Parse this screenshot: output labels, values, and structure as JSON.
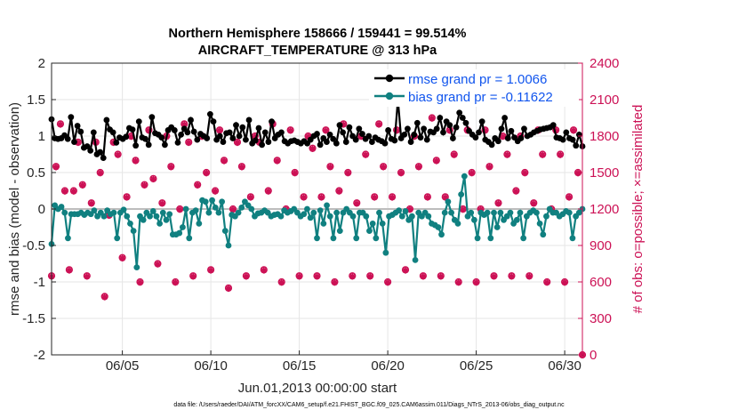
{
  "chart_data": {
    "type": "line",
    "title": [
      "Northern Hemisphere 158666 / 159441 = 99.514%",
      "AIRCRAFT_TEMPERATURE @ 313 hPa"
    ],
    "xlabel": "Jun.01,2013 00:00:00 start",
    "ylabel_left": "rmse and bias (model - observation)",
    "ylabel_right": "# of obs: o=possible; ×=assimilated",
    "footer": "data file: /Users/raeder/DAI/ATM_forcXX/CAM6_setup/f.e21.FHIST_BGC.f09_025.CAM6assim.011/Diags_NTrS_2013-06/obs_diag_output.nc",
    "x_tick_labels": [
      "06/05",
      "06/10",
      "06/15",
      "06/20",
      "06/25",
      "06/30"
    ],
    "x_tick_days": [
      5,
      10,
      15,
      20,
      25,
      30
    ],
    "xlim_days": [
      1,
      31
    ],
    "ylim_left": [
      -2,
      2
    ],
    "y_ticks_left": [
      "-2",
      "-1.5",
      "-1",
      "-0.5",
      "0",
      "0.5",
      "1",
      "1.5",
      "2"
    ],
    "ylim_right": [
      0,
      2400
    ],
    "y_ticks_right": [
      "0",
      "300",
      "600",
      "900",
      "1200",
      "1500",
      "1800",
      "2100",
      "2400"
    ],
    "grid": true,
    "legend": {
      "location": "top-right",
      "entries": [
        "rmse grand pr = 1.0066",
        "bias grand pr = -0.11622"
      ]
    },
    "series": [
      {
        "name": "rmse",
        "axis": "left",
        "color": "#000000",
        "marker": "filled-circle",
        "values": [
          1.23,
          0.97,
          0.96,
          0.97,
          1.01,
          0.96,
          1.26,
          0.92,
          1.14,
          1.06,
          0.84,
          0.86,
          0.8,
          1.05,
          0.75,
          0.78,
          0.7,
          1.22,
          1.09,
          1.05,
          0.91,
          0.98,
          0.96,
          0.99,
          1.11,
          1.09,
          0.87,
          1.2,
          0.98,
          0.96,
          0.88,
          1.26,
          1.04,
          1.02,
          0.98,
          0.88,
          1.08,
          1.12,
          1.08,
          0.91,
          1.02,
          1.1,
          1.05,
          1.22,
          1.06,
          0.95,
          1.03,
          1.0,
          0.97,
          1.3,
          1.2,
          0.95,
          1.0,
          0.92,
          1.04,
          1.05,
          0.97,
          1.15,
          1.0,
          1.12,
          0.95,
          1.22,
          0.9,
          0.94,
          1.11,
          0.88,
          1.05,
          0.92,
          1.2,
          0.97,
          1.02,
          1.05,
          0.93,
          0.9,
          0.93,
          0.94,
          0.92,
          0.9,
          0.93,
          0.9,
          0.95,
          1.0,
          1.03,
          0.88,
          0.97,
          0.92,
          1.02,
          0.96,
          0.9,
          1.15,
          1.05,
          0.92,
          1.12,
          1.0,
          0.95,
          1.1,
          1.03,
          0.96,
          1.0,
          0.92,
          0.98,
          0.95,
          0.93,
          0.9,
          1.08,
          0.96,
          0.94,
          1.5,
          0.97,
          1.02,
          1.1,
          0.92,
          1.02,
          1.18,
          0.98,
          1.1,
          0.95,
          1.06,
          1.05,
          1.1,
          1.25,
          1.05,
          1.2,
          1.15,
          0.97,
          1.12,
          1.32,
          1.25,
          1.18,
          1.07,
          1.02,
          0.98,
          1.05,
          1.2,
          0.95,
          0.92,
          0.88,
          0.97,
          0.93,
          1.1,
          1.25,
          0.97,
          1.07,
          0.98,
          0.93,
          0.97,
          1.1,
          1.0,
          1.02,
          1.05,
          1.07,
          1.09,
          1.1,
          1.11,
          1.12,
          1.15,
          0.98,
          0.97,
          0.95,
          1.05,
          0.97,
          0.95,
          0.87,
          1.02,
          0.86
        ]
      },
      {
        "name": "bias",
        "axis": "left",
        "color": "#108080",
        "marker": "filled-circle",
        "values": [
          -0.48,
          0.05,
          0.0,
          0.03,
          -0.05,
          -0.4,
          -0.07,
          -0.07,
          -0.07,
          -0.05,
          -0.08,
          -0.05,
          -0.07,
          -0.02,
          -0.1,
          -0.05,
          -0.1,
          -0.02,
          -0.07,
          -0.05,
          -0.4,
          -0.05,
          -0.01,
          -0.1,
          -0.2,
          -0.3,
          -0.8,
          -0.1,
          -0.15,
          -0.05,
          -0.1,
          -0.03,
          -0.1,
          -0.2,
          -0.05,
          -0.15,
          -0.07,
          -0.35,
          -0.35,
          -0.33,
          -0.25,
          0.0,
          -0.4,
          -0.05,
          -0.02,
          -0.2,
          0.12,
          0.1,
          -0.05,
          0.12,
          0.02,
          -0.05,
          0.1,
          -0.3,
          -0.5,
          -0.08,
          -0.1,
          -0.05,
          0.02,
          0.1,
          0.05,
          0.0,
          -0.1,
          -0.06,
          -0.05,
          -0.02,
          -0.05,
          -0.1,
          -0.08,
          -0.07,
          -0.1,
          -0.02,
          -0.05,
          -0.03,
          0.0,
          -0.05,
          -0.1,
          -0.07,
          0.0,
          -0.12,
          -0.05,
          -0.4,
          -0.02,
          -0.2,
          0.05,
          -0.1,
          -0.4,
          -0.05,
          -0.3,
          -0.05,
          0.0,
          -0.05,
          -0.1,
          -0.4,
          -0.05,
          -0.05,
          -0.1,
          -0.3,
          -0.2,
          -0.4,
          -0.05,
          -0.2,
          -0.6,
          -0.1,
          -0.08,
          -0.05,
          -0.02,
          -0.1,
          -0.03,
          -0.15,
          -0.1,
          -0.7,
          -0.05,
          -0.1,
          -0.05,
          -0.1,
          -0.2,
          -0.22,
          -0.25,
          -0.35,
          -0.05,
          0.1,
          -0.05,
          -0.15,
          -0.2,
          0.2,
          0.45,
          -0.1,
          -0.05,
          -0.15,
          -0.4,
          -0.05,
          -0.08,
          -0.05,
          -0.4,
          -0.05,
          -0.25,
          -0.05,
          -0.15,
          -0.1,
          -0.05,
          -0.2,
          -0.15,
          -0.05,
          -0.4,
          -0.1,
          -0.05,
          -0.02,
          -0.05,
          -0.2,
          -0.35,
          -0.1,
          0.0,
          -0.05,
          -0.05,
          -0.1,
          -0.07,
          -0.03,
          -0.05,
          -0.4,
          -0.1,
          -0.05,
          0.0
        ]
      },
      {
        "name": "obs possible",
        "axis": "right",
        "color": "#cc1155",
        "marker": "circle",
        "x_days": [
          1.0,
          1.25,
          1.5,
          1.75,
          2.0,
          2.25,
          2.5,
          2.75,
          3.0,
          3.25,
          3.5,
          3.75,
          4.0,
          4.25,
          4.5,
          4.75,
          5.0,
          5.25,
          5.5,
          5.75,
          6.0,
          6.25,
          6.5,
          6.75,
          7.0,
          7.25,
          7.5,
          7.75,
          8.0,
          8.25,
          8.5,
          8.75,
          9.0,
          9.25,
          9.5,
          9.75,
          10.0,
          10.25,
          10.5,
          10.75,
          11.0,
          11.25,
          11.5,
          11.75,
          12.0,
          12.25,
          12.5,
          12.75,
          13.0,
          13.25,
          13.5,
          13.75,
          14.0,
          14.25,
          14.5,
          14.75,
          15.0,
          15.25,
          15.5,
          15.75,
          16.0,
          16.25,
          16.5,
          16.75,
          17.0,
          17.25,
          17.5,
          17.75,
          18.0,
          18.25,
          18.5,
          18.75,
          19.0,
          19.25,
          19.5,
          19.75,
          20.0,
          20.25,
          20.5,
          20.75,
          21.0,
          21.25,
          21.5,
          21.75,
          22.0,
          22.25,
          22.5,
          22.75,
          23.0,
          23.25,
          23.5,
          23.75,
          24.0,
          24.25,
          24.5,
          24.75,
          25.0,
          25.25,
          25.5,
          25.75,
          26.0,
          26.25,
          26.5,
          26.75,
          27.0,
          27.25,
          27.5,
          27.75,
          28.0,
          28.25,
          28.5,
          28.75,
          29.0,
          29.25,
          29.5,
          29.75,
          30.0,
          30.25,
          30.5,
          30.75,
          31.0
        ],
        "values": [
          650,
          1550,
          1900,
          1350,
          700,
          1350,
          1750,
          1400,
          650,
          1250,
          1750,
          1500,
          480,
          1150,
          1750,
          1650,
          800,
          1300,
          1800,
          1600,
          600,
          1400,
          1850,
          1450,
          750,
          1250,
          1800,
          1550,
          600,
          1200,
          1900,
          1750,
          650,
          1400,
          1800,
          1500,
          700,
          1350,
          1850,
          1600,
          550,
          1200,
          1750,
          1550,
          650,
          1300,
          1800,
          1750,
          700,
          1350,
          1900,
          1600,
          600,
          1200,
          1850,
          1500,
          650,
          1300,
          1800,
          1700,
          650,
          1300,
          1850,
          1550,
          600,
          1350,
          1900,
          1500,
          650,
          1250,
          1800,
          1650,
          650,
          1300,
          1900,
          1550,
          600,
          1300,
          1850,
          1500,
          700,
          1200,
          1800,
          1550,
          650,
          1300,
          1950,
          1600,
          650,
          1300,
          1850,
          1650,
          600,
          1200,
          1850,
          1500,
          600,
          1200,
          1850,
          1550,
          650,
          1250,
          1800,
          1650,
          650,
          1350,
          1800,
          1500,
          650,
          1250,
          1850,
          1650,
          600,
          1200,
          1850,
          1650,
          600,
          1300,
          1850,
          1500,
          0
        ]
      },
      {
        "name": "obs assimilated",
        "axis": "right",
        "color": "#cc1155",
        "marker": "asterisk",
        "x_days": [
          1.0,
          1.25,
          1.5,
          1.75,
          2.0,
          2.25,
          2.5,
          2.75,
          3.0,
          3.25,
          3.5,
          3.75,
          4.0,
          4.25,
          4.5,
          4.75,
          5.0,
          5.25,
          5.5,
          5.75,
          6.0,
          6.25,
          6.5,
          6.75,
          7.0,
          7.25,
          7.5,
          7.75,
          8.0,
          8.25,
          8.5,
          8.75,
          9.0,
          9.25,
          9.5,
          9.75,
          10.0,
          10.25,
          10.5,
          10.75,
          11.0,
          11.25,
          11.5,
          11.75,
          12.0,
          12.25,
          12.5,
          12.75,
          13.0,
          13.25,
          13.5,
          13.75,
          14.0,
          14.25,
          14.5,
          14.75,
          15.0,
          15.25,
          15.5,
          15.75,
          16.0,
          16.25,
          16.5,
          16.75,
          17.0,
          17.25,
          17.5,
          17.75,
          18.0,
          18.25,
          18.5,
          18.75,
          19.0,
          19.25,
          19.5,
          19.75,
          20.0,
          20.25,
          20.5,
          20.75,
          21.0,
          21.25,
          21.5,
          21.75,
          22.0,
          22.25,
          22.5,
          22.75,
          23.0,
          23.25,
          23.5,
          23.75,
          24.0,
          24.25,
          24.5,
          24.75,
          25.0,
          25.25,
          25.5,
          25.75,
          26.0,
          26.25,
          26.5,
          26.75,
          27.0,
          27.25,
          27.5,
          27.75,
          28.0,
          28.25,
          28.5,
          28.75,
          29.0,
          29.25,
          29.5,
          29.75,
          30.0,
          30.25,
          30.5,
          30.75,
          31.0
        ],
        "values": [
          645,
          1545,
          1895,
          1345,
          695,
          1345,
          1745,
          1395,
          645,
          1245,
          1745,
          1495,
          475,
          1145,
          1745,
          1645,
          795,
          1295,
          1795,
          1595,
          595,
          1395,
          1845,
          1445,
          745,
          1245,
          1795,
          1545,
          595,
          1195,
          1895,
          1745,
          645,
          1395,
          1795,
          1495,
          695,
          1345,
          1845,
          1595,
          545,
          1195,
          1745,
          1545,
          645,
          1295,
          1795,
          1745,
          695,
          1345,
          1895,
          1595,
          595,
          1195,
          1845,
          1495,
          645,
          1295,
          1795,
          1695,
          645,
          1295,
          1845,
          1545,
          595,
          1345,
          1895,
          1495,
          645,
          1245,
          1795,
          1645,
          645,
          1295,
          1895,
          1545,
          595,
          1295,
          1845,
          1495,
          695,
          1195,
          1795,
          1545,
          645,
          1295,
          1945,
          1595,
          645,
          1295,
          1845,
          1645,
          595,
          1195,
          1845,
          1495,
          595,
          1195,
          1845,
          1545,
          645,
          1245,
          1795,
          1645,
          645,
          1345,
          1795,
          1495,
          645,
          1245,
          1845,
          1645,
          595,
          1195,
          1845,
          1645,
          595,
          1295,
          1845,
          1495,
          0
        ]
      }
    ]
  }
}
